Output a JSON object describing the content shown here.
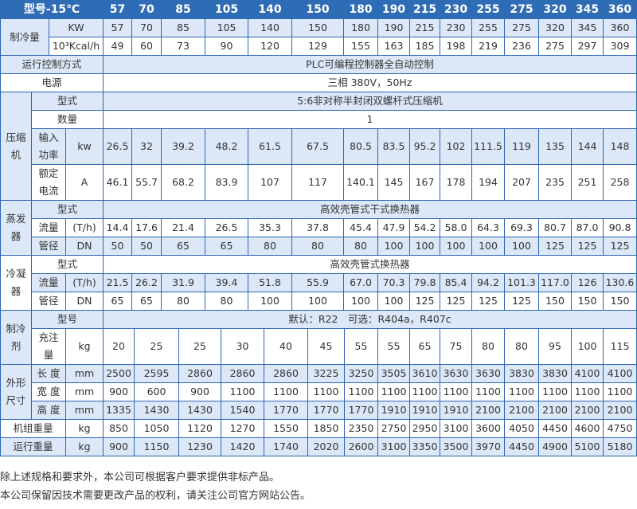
{
  "header": {
    "model_label": "型号-15℃",
    "models": [
      "57",
      "70",
      "85",
      "105",
      "140",
      "150",
      "180",
      "190",
      "215",
      "230",
      "255",
      "275",
      "320",
      "345",
      "360"
    ]
  },
  "cooling": {
    "label": "制冷量",
    "kw_unit": "KW",
    "kw": [
      "57",
      "70",
      "85",
      "105",
      "140",
      "150",
      "180",
      "190",
      "215",
      "230",
      "255",
      "275",
      "320",
      "345",
      "360"
    ],
    "kcal_unit": "10³Kcal/h",
    "kcal": [
      "49",
      "60",
      "73",
      "90",
      "120",
      "129",
      "155",
      "163",
      "185",
      "198",
      "219",
      "236",
      "275",
      "297",
      "309"
    ]
  },
  "control": {
    "label": "运行控制方式",
    "value": "PLC可编程控制器全自动控制"
  },
  "power": {
    "label": "电源",
    "value": "三相 380V，50Hz"
  },
  "compressor": {
    "label": "压缩机",
    "type_label": "型式",
    "type": "5:6非对称半封闭双螺杆式压缩机",
    "qty_label": "数量",
    "qty": "1",
    "input_label": "输入功率",
    "input_unit": "kw",
    "input": [
      "26.5",
      "32",
      "39.2",
      "48.2",
      "61.5",
      "67.5",
      "80.5",
      "83.5",
      "95.2",
      "102",
      "111.5",
      "119",
      "135",
      "144",
      "148"
    ],
    "current_label": "额定电流",
    "current_unit": "A",
    "current": [
      "46.1",
      "55.7",
      "68.2",
      "83.9",
      "107",
      "117",
      "140.1",
      "145",
      "167",
      "178",
      "194",
      "207",
      "235",
      "251",
      "258"
    ]
  },
  "evaporator": {
    "label": "蒸发器",
    "type_label": "型式",
    "type": "高效壳管式干式换热器",
    "flow_label": "流量",
    "flow_unit": "(T/h)",
    "flow": [
      "14.4",
      "17.6",
      "21.4",
      "26.5",
      "35.3",
      "37.8",
      "45.4",
      "47.9",
      "54.2",
      "58.0",
      "64.3",
      "69.3",
      "80.7",
      "87.0",
      "90.8"
    ],
    "pipe_label": "管径",
    "pipe_unit": "DN",
    "pipe": [
      "50",
      "50",
      "65",
      "65",
      "80",
      "80",
      "80",
      "100",
      "100",
      "100",
      "100",
      "100",
      "125",
      "125",
      "125"
    ]
  },
  "condenser": {
    "label": "冷凝器",
    "type_label": "型式",
    "type": "高效壳管式换热器",
    "flow_label": "流量",
    "flow_unit": "(T/h)",
    "flow": [
      "21.5",
      "26.2",
      "31.9",
      "39.4",
      "51.8",
      "55.9",
      "67.0",
      "70.3",
      "79.8",
      "85.4",
      "94.2",
      "101.3",
      "117.0",
      "126",
      "130.6"
    ],
    "pipe_label": "管径",
    "pipe_unit": "DN",
    "pipe": [
      "65",
      "65",
      "80",
      "80",
      "100",
      "100",
      "100",
      "100",
      "125",
      "125",
      "125",
      "125",
      "150",
      "150",
      "150"
    ]
  },
  "refrigerant": {
    "label": "制冷剂",
    "type_label": "型号",
    "type": "默认：R22　可选：R404a，R407c",
    "charge_label": "充注量",
    "charge_unit": "kg",
    "charge": [
      "20",
      "25",
      "25",
      "30",
      "40",
      "45",
      "55",
      "55",
      "65",
      "75",
      "80",
      "80",
      "95",
      "100",
      "115"
    ]
  },
  "dimensions": {
    "label": "外形尺寸",
    "length_label": "长 度",
    "width_label": "宽 度",
    "height_label": "高 度",
    "unit": "mm",
    "length": [
      "2500",
      "2595",
      "2860",
      "2860",
      "2860",
      "3225",
      "3250",
      "3505",
      "3610",
      "3630",
      "3630",
      "3830",
      "3830",
      "4100",
      "4100"
    ],
    "width": [
      "900",
      "600",
      "900",
      "1100",
      "1100",
      "1100",
      "1100",
      "1100",
      "1100",
      "1100",
      "1100",
      "1100",
      "1100",
      "1100",
      "1100"
    ],
    "height": [
      "1335",
      "1430",
      "1430",
      "1540",
      "1770",
      "1770",
      "1770",
      "1910",
      "1910",
      "1910",
      "2100",
      "2100",
      "2100",
      "2100",
      "2100"
    ]
  },
  "unit_weight": {
    "label": "机组重量",
    "unit": "kg",
    "values": [
      "850",
      "1050",
      "1120",
      "1270",
      "1550",
      "1850",
      "2350",
      "2750",
      "2950",
      "3100",
      "3600",
      "4050",
      "4450",
      "4600",
      "4750"
    ]
  },
  "operating_weight": {
    "label": "运行重量",
    "unit": "kg",
    "values": [
      "900",
      "1150",
      "1230",
      "1420",
      "1740",
      "2020",
      "2600",
      "3100",
      "3350",
      "3500",
      "3970",
      "4450",
      "4900",
      "5100",
      "5180"
    ]
  },
  "notes": [
    "除上述规格和要求外，本公司可根据客户要求提供非标产品。",
    "本公司保留因技术需要更改产品的权利，请关注公司官方网站公告。"
  ],
  "colors": {
    "header": "#2f6cb6",
    "row_shade": "#dce8f8",
    "border": "#2d65b5"
  }
}
